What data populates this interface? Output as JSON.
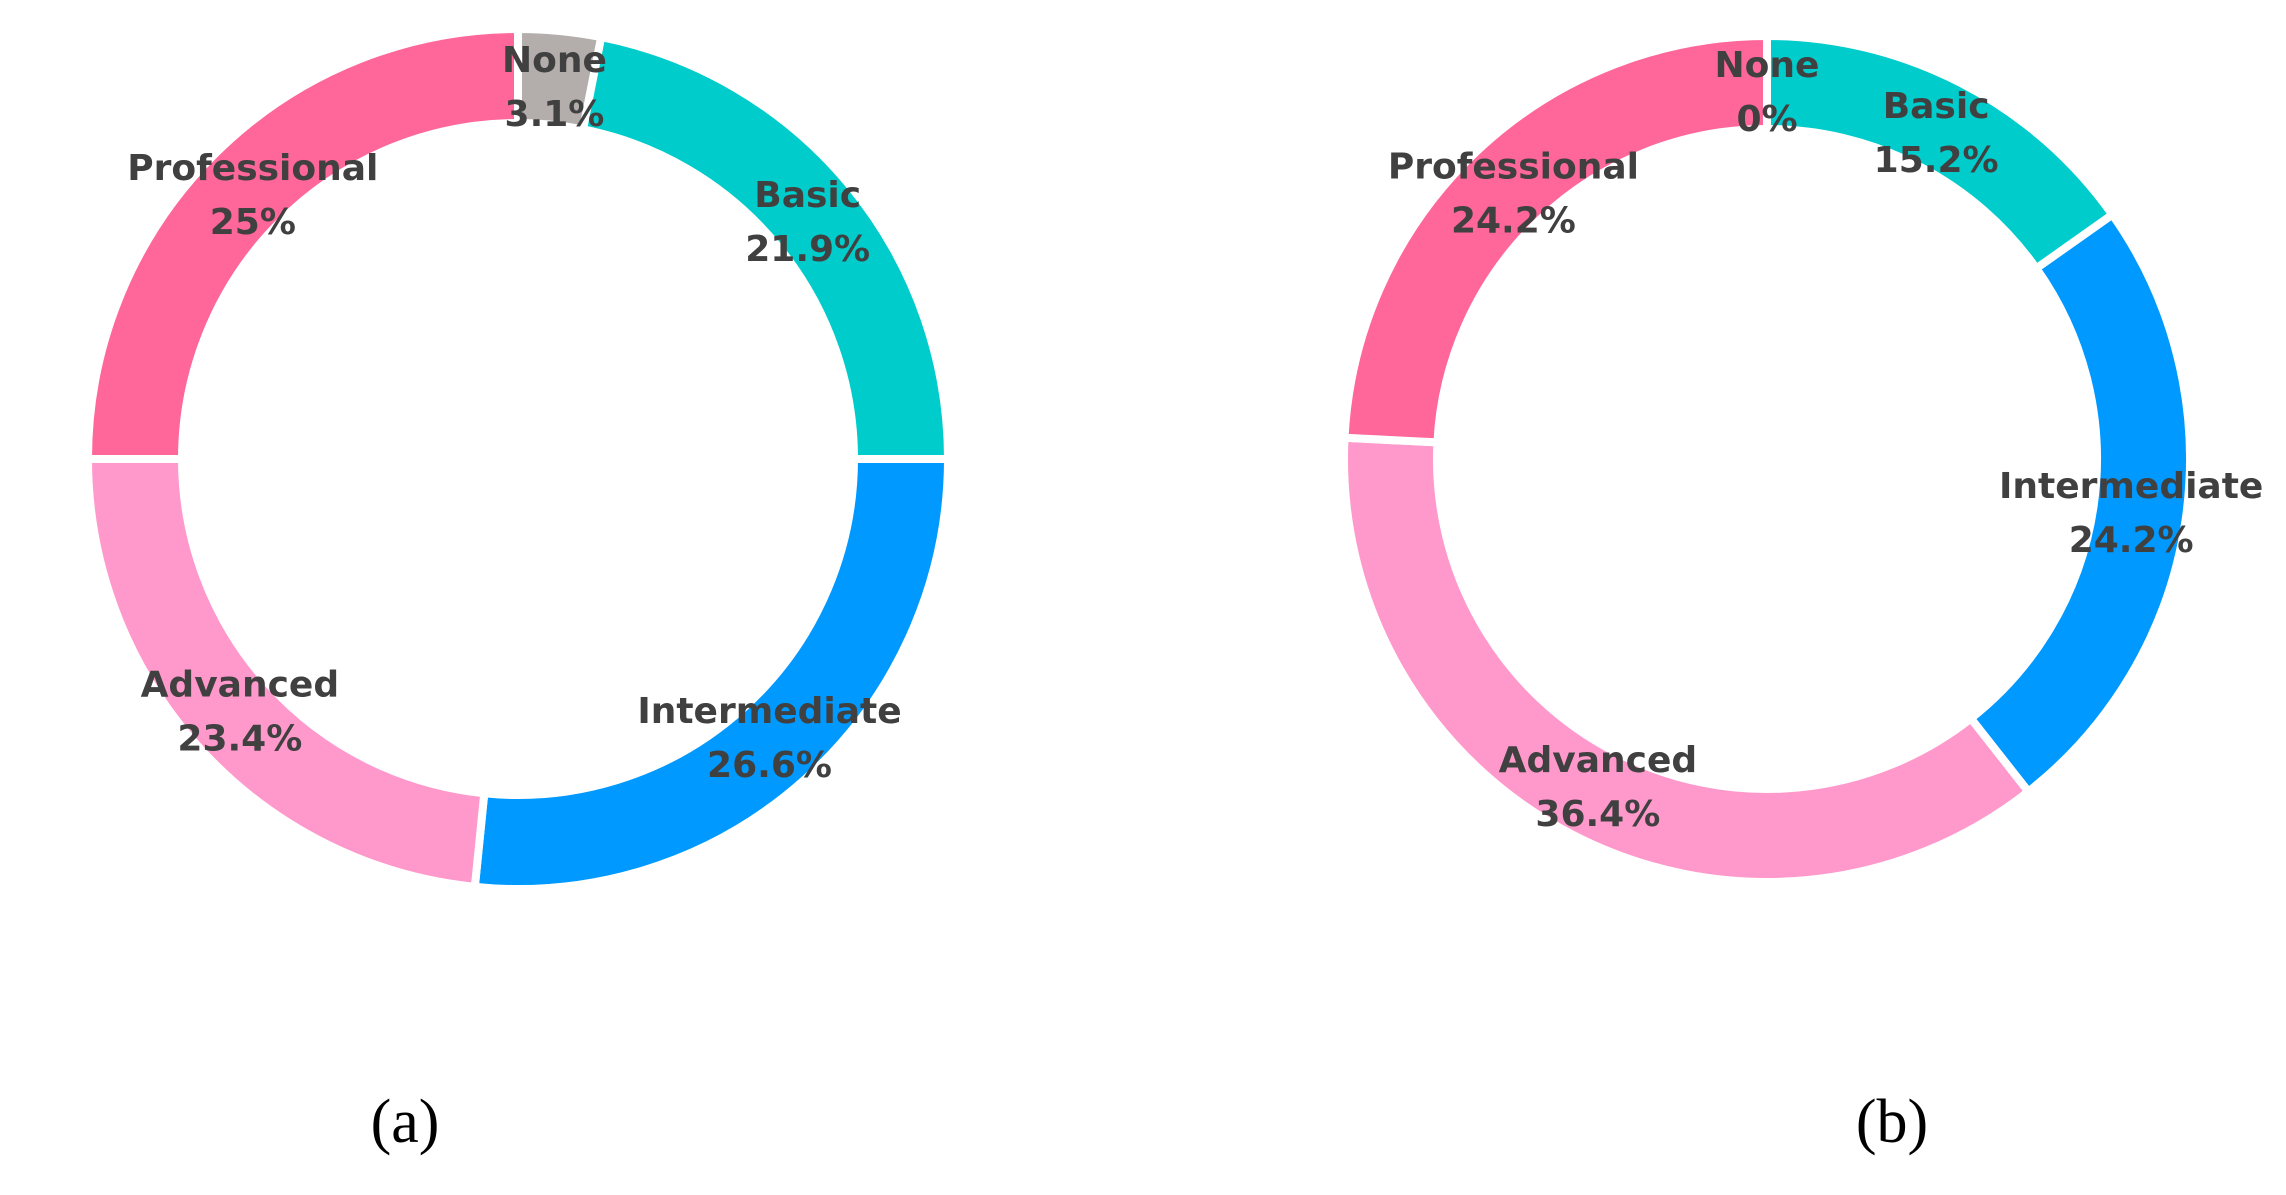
{
  "chart_data": [
    {
      "type": "donut",
      "caption": "(a)",
      "categories": [
        "None",
        "Basic",
        "Intermediate",
        "Advanced",
        "Professional"
      ],
      "values": [
        3.1,
        21.9,
        26.6,
        23.4,
        25
      ],
      "value_labels": [
        "3.1%",
        "21.9%",
        "26.6%",
        "23.4%",
        "25%"
      ],
      "colors": [
        "#b3adab",
        "#00cccc",
        "#0099ff",
        "#ff99cc",
        "#ff6699"
      ]
    },
    {
      "type": "donut",
      "caption": "(b)",
      "categories": [
        "None",
        "Basic",
        "Intermediate",
        "Advanced",
        "Professional"
      ],
      "values": [
        0,
        15.2,
        24.2,
        36.4,
        24.2
      ],
      "value_labels": [
        "0%",
        "15.2%",
        "24.2%",
        "36.4%",
        "24.2%"
      ],
      "colors": [
        "#b3adab",
        "#00cccc",
        "#0099ff",
        "#ff99cc",
        "#ff6699"
      ]
    }
  ]
}
